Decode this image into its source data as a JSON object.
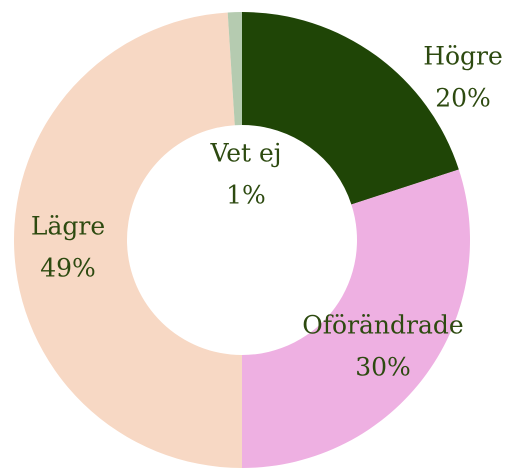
{
  "chart_data": {
    "type": "donut",
    "categories": [
      "Högre",
      "Oförändrade",
      "Lägre",
      "Vet ej"
    ],
    "values": [
      20,
      30,
      49,
      1
    ],
    "value_labels": [
      "20%",
      "30%",
      "49%",
      "1%"
    ],
    "colors": [
      "#1f4506",
      "#eeb0e2",
      "#f7d8c4",
      "#b5cbb0"
    ]
  }
}
